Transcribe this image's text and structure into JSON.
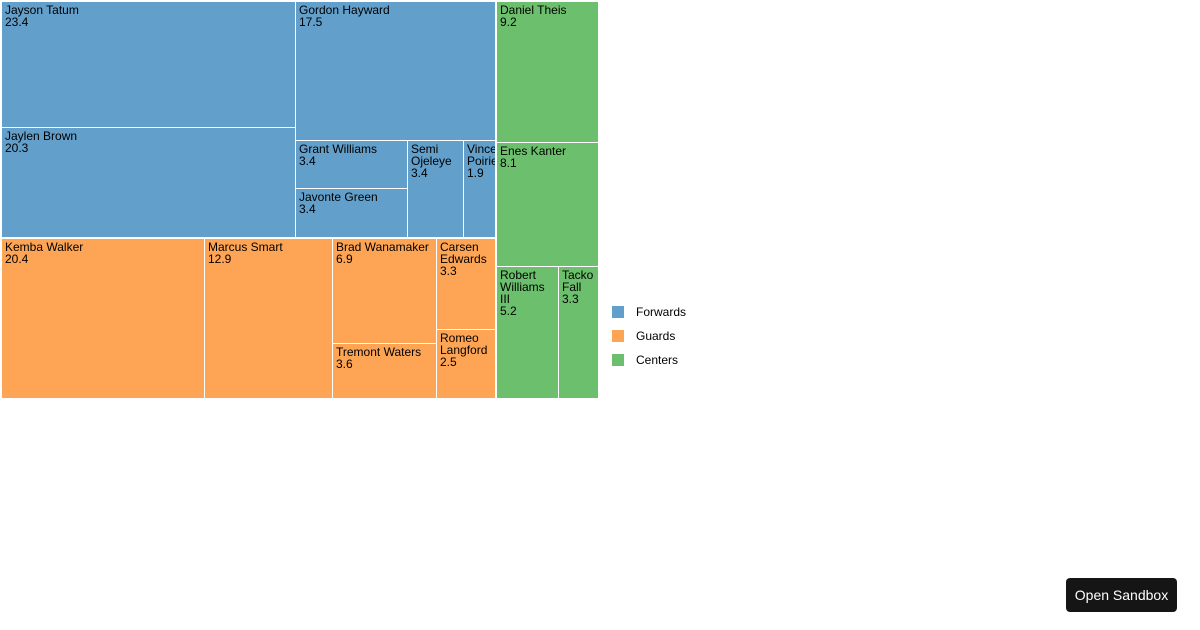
{
  "chart_data": {
    "type": "treemap",
    "legend_position": "right",
    "groups": [
      {
        "name": "Forwards",
        "color": "#629fca",
        "children": [
          {
            "name": "Jayson Tatum",
            "value": 23.4
          },
          {
            "name": "Gordon Hayward",
            "value": 17.5
          },
          {
            "name": "Jaylen Brown",
            "value": 20.3
          },
          {
            "name": "Grant Williams",
            "value": 3.4
          },
          {
            "name": "Semi Ojeleye",
            "value": 3.4
          },
          {
            "name": "Vincent Poirier",
            "value": 1.9
          },
          {
            "name": "Javonte Green",
            "value": 3.4
          }
        ]
      },
      {
        "name": "Guards",
        "color": "#fea555",
        "children": [
          {
            "name": "Kemba Walker",
            "value": 20.4
          },
          {
            "name": "Marcus Smart",
            "value": 12.9
          },
          {
            "name": "Brad Wanamaker",
            "value": 6.9
          },
          {
            "name": "Carsen Edwards",
            "value": 3.3
          },
          {
            "name": "Tremont Waters",
            "value": 3.6
          },
          {
            "name": "Romeo Langford",
            "value": 2.5
          }
        ]
      },
      {
        "name": "Centers",
        "color": "#6cbf6c",
        "children": [
          {
            "name": "Daniel Theis",
            "value": 9.2
          },
          {
            "name": "Enes Kanter",
            "value": 8.1
          },
          {
            "name": "Robert Williams III",
            "value": 5.2
          },
          {
            "name": "Tacko Fall",
            "value": 3.3
          }
        ]
      }
    ]
  },
  "sandbox_button": {
    "label": "Open Sandbox"
  }
}
